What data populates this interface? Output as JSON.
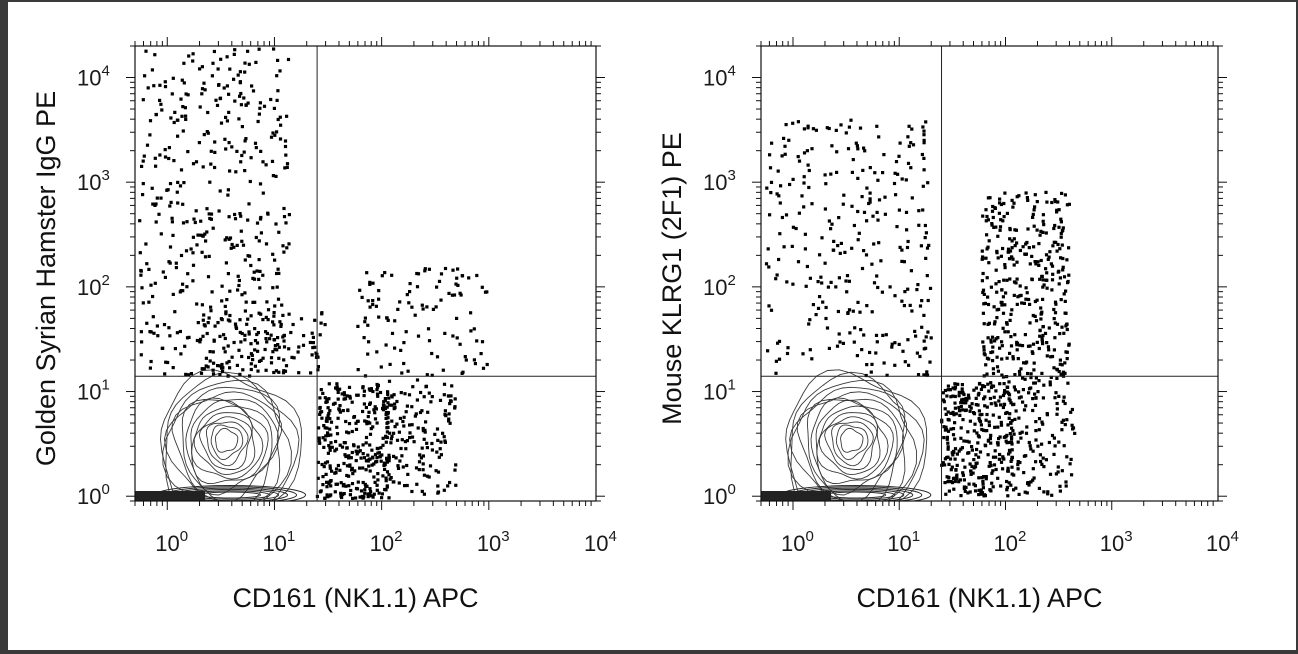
{
  "chart_data": [
    {
      "type": "scatter",
      "xlabel": "CD161 (NK1.1) APC",
      "ylabel": "Golden Syrian Hamster IgG PE",
      "xscale": "log",
      "yscale": "log",
      "xlim": [
        0.5,
        10000
      ],
      "ylim": [
        0.9,
        20000
      ],
      "x_ticks": [
        {
          "base": "10",
          "exp": "0"
        },
        {
          "base": "10",
          "exp": "1"
        },
        {
          "base": "10",
          "exp": "2"
        },
        {
          "base": "10",
          "exp": "3"
        },
        {
          "base": "10",
          "exp": "4"
        }
      ],
      "y_ticks": [
        {
          "base": "10",
          "exp": "0"
        },
        {
          "base": "10",
          "exp": "1"
        },
        {
          "base": "10",
          "exp": "2"
        },
        {
          "base": "10",
          "exp": "3"
        },
        {
          "base": "10",
          "exp": "4"
        }
      ],
      "quadrant_gate": {
        "x": 25,
        "y": 14
      },
      "contour_center": [
        3.5,
        3.5
      ],
      "populations": [
        {
          "x": [
            0.55,
            14
          ],
          "y": [
            14,
            19000
          ],
          "n": 430
        },
        {
          "x": [
            2,
            30
          ],
          "y": [
            14,
            60
          ],
          "n": 120
        },
        {
          "x": [
            25,
            120
          ],
          "y": [
            0.95,
            12
          ],
          "n": 320
        },
        {
          "x": [
            110,
            500
          ],
          "y": [
            1,
            13
          ],
          "n": 150
        },
        {
          "x": [
            60,
            1000
          ],
          "y": [
            14,
            150
          ],
          "n": 110
        }
      ],
      "grid": false
    },
    {
      "type": "scatter",
      "xlabel": "CD161 (NK1.1) APC",
      "ylabel": "Mouse KLRG1 (2F1) PE",
      "xscale": "log",
      "yscale": "log",
      "xlim": [
        0.5,
        10000
      ],
      "ylim": [
        0.9,
        20000
      ],
      "x_ticks": [
        {
          "base": "10",
          "exp": "0"
        },
        {
          "base": "10",
          "exp": "1"
        },
        {
          "base": "10",
          "exp": "2"
        },
        {
          "base": "10",
          "exp": "3"
        },
        {
          "base": "10",
          "exp": "4"
        }
      ],
      "y_ticks": [
        {
          "base": "10",
          "exp": "0"
        },
        {
          "base": "10",
          "exp": "1"
        },
        {
          "base": "10",
          "exp": "2"
        },
        {
          "base": "10",
          "exp": "3"
        },
        {
          "base": "10",
          "exp": "4"
        }
      ],
      "quadrant_gate": {
        "x": 25,
        "y": 14
      },
      "contour_center": [
        3.5,
        3.5
      ],
      "populations": [
        {
          "x": [
            0.55,
            20
          ],
          "y": [
            14,
            4000
          ],
          "n": 300
        },
        {
          "x": [
            25,
            120
          ],
          "y": [
            1,
            12
          ],
          "n": 320
        },
        {
          "x": [
            60,
            400
          ],
          "y": [
            12,
            800
          ],
          "n": 380
        },
        {
          "x": [
            100,
            450
          ],
          "y": [
            1,
            14
          ],
          "n": 140
        }
      ],
      "grid": false
    }
  ]
}
